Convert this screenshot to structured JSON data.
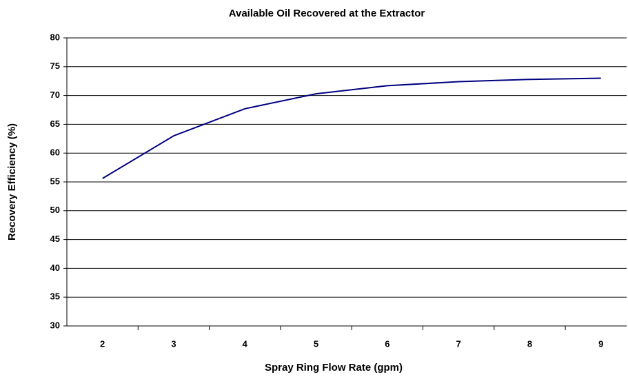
{
  "chart_data": {
    "type": "line",
    "title": "Available Oil Recovered at the Extractor",
    "x_label": "Spray Ring Flow Rate (gpm)",
    "y_label": "Recovery Efficiency (%)",
    "categories": [
      "2",
      "3",
      "4",
      "5",
      "6",
      "7",
      "8",
      "9"
    ],
    "series": [
      {
        "color": "#000080",
        "values": [
          55.6,
          63.0,
          67.7,
          70.3,
          71.7,
          72.4,
          72.8,
          73.0
        ]
      }
    ],
    "ylim": [
      30,
      80
    ],
    "yticks": [
      30,
      35,
      40,
      45,
      50,
      55,
      60,
      65,
      70,
      75,
      80
    ],
    "grid": true
  }
}
